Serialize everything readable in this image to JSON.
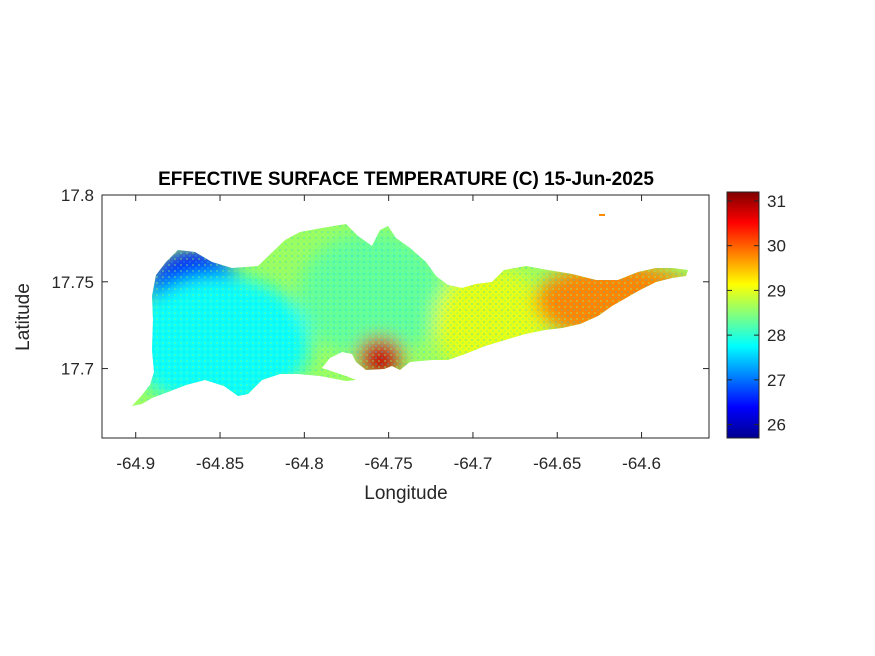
{
  "chart_data": {
    "type": "heatmap",
    "title": "EFFECTIVE SURFACE TEMPERATURE (C) 15-Jun-2025",
    "xlabel": "Longitude",
    "ylabel": "Latitude",
    "xlim": [
      -64.92,
      -64.56
    ],
    "ylim": [
      17.66,
      17.8
    ],
    "x_ticks": [
      -64.9,
      -64.85,
      -64.8,
      -64.75,
      -64.7,
      -64.65,
      -64.6
    ],
    "x_tick_labels": [
      "-64.9",
      "-64.85",
      "-64.8",
      "-64.75",
      "-64.7",
      "-64.65",
      "-64.6"
    ],
    "y_ticks": [
      17.7,
      17.75,
      17.8
    ],
    "y_tick_labels": [
      "17.7",
      "17.75",
      "17.8"
    ],
    "colorbar": {
      "colormap": "jet",
      "range": [
        25.7,
        31.2
      ],
      "ticks": [
        26,
        27,
        28,
        29,
        30,
        31
      ],
      "tick_labels": [
        "26",
        "27",
        "28",
        "29",
        "30",
        "31"
      ]
    },
    "grid": false,
    "regions": [
      {
        "lon": [
          -64.89,
          -64.84
        ],
        "lat": [
          17.72,
          17.765
        ],
        "temp": 26.5
      },
      {
        "lon": [
          -64.9,
          -64.8
        ],
        "lat": [
          17.68,
          17.75
        ],
        "temp": 27.8
      },
      {
        "lon": [
          -64.8,
          -64.72
        ],
        "lat": [
          17.71,
          17.775
        ],
        "temp": 28.3
      },
      {
        "lon": [
          -64.72,
          -64.66
        ],
        "lat": [
          17.7,
          17.755
        ],
        "temp": 29.0
      },
      {
        "lon": [
          -64.66,
          -64.57
        ],
        "lat": [
          17.72,
          17.757
        ],
        "temp": 29.8
      },
      {
        "lon": [
          -64.765,
          -64.745
        ],
        "lat": [
          17.7,
          17.715
        ],
        "temp": 30.8
      }
    ]
  }
}
